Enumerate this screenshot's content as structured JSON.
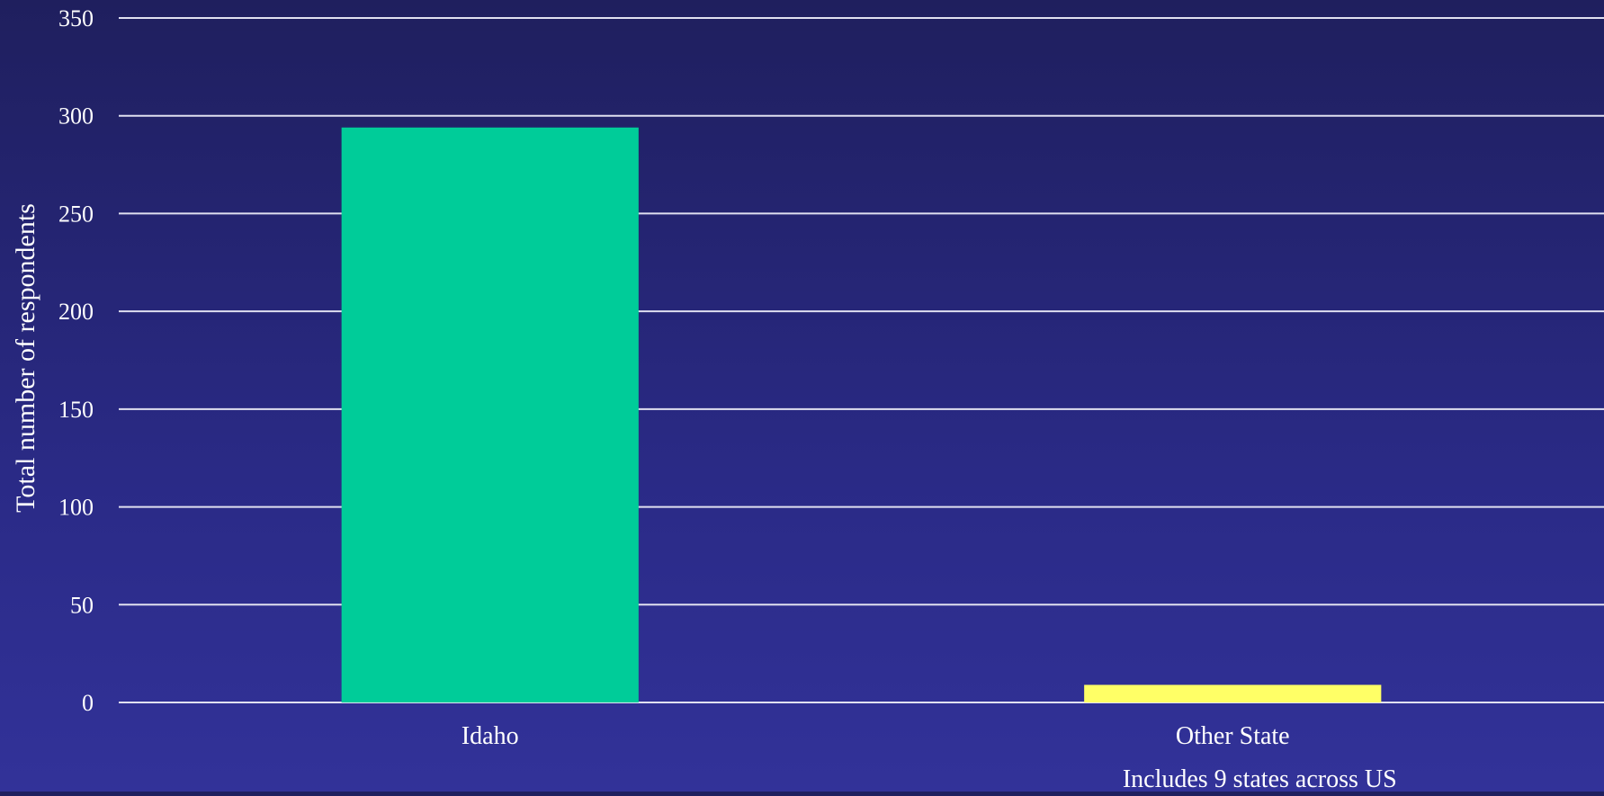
{
  "chart_data": {
    "type": "bar",
    "categories": [
      "Idaho",
      "Other State"
    ],
    "values": [
      294,
      9
    ],
    "colors": [
      "#00cc99",
      "#ffff66"
    ],
    "title": "",
    "xlabel": "",
    "ylabel": "Total number of respondents",
    "ylim": [
      0,
      350
    ],
    "yticks": [
      0,
      50,
      100,
      150,
      200,
      250,
      300,
      350
    ],
    "grid": true,
    "gridline_color": "#e0e0f0",
    "annotations": [
      {
        "category": "Other State",
        "text": "Includes 9 states across US"
      }
    ]
  }
}
